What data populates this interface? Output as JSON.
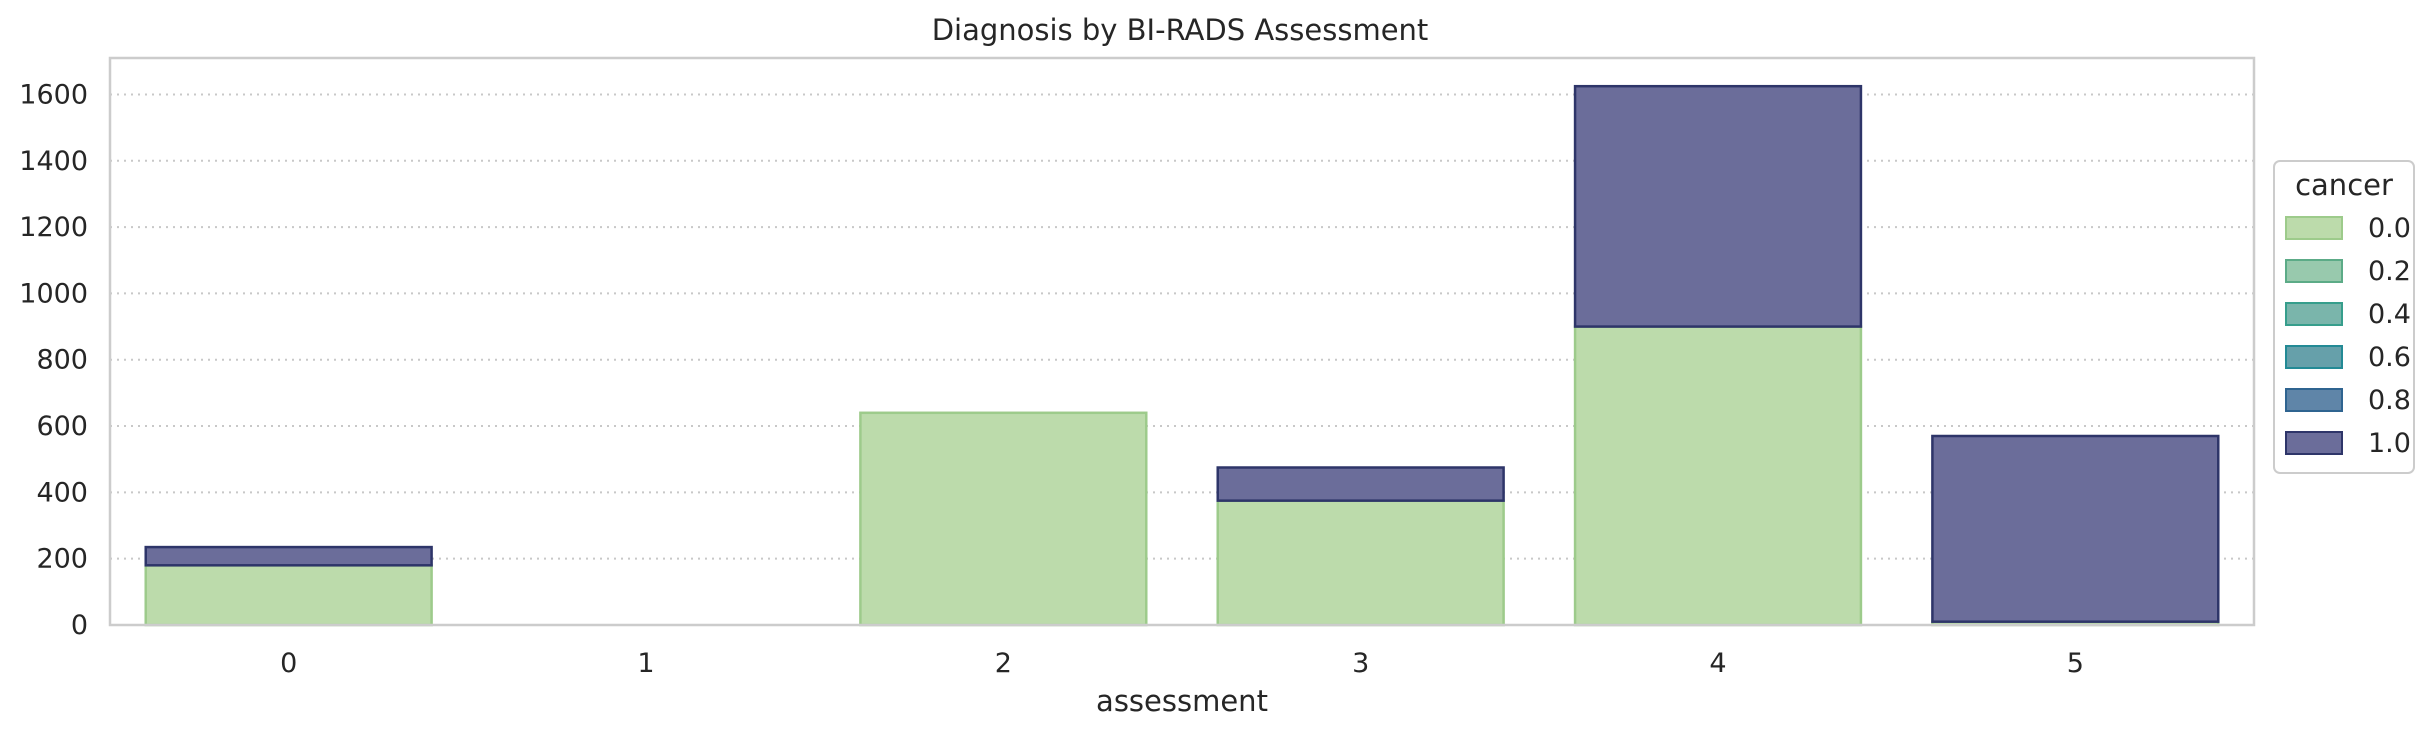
{
  "chart_data": {
    "type": "bar",
    "stacked": true,
    "title": "Diagnosis by BI-RADS Assessment",
    "xlabel": "assessment",
    "ylabel": "",
    "categories": [
      "0",
      "1",
      "2",
      "3",
      "4",
      "5"
    ],
    "yticks": [
      "0",
      "200",
      "400",
      "600",
      "800",
      "1000",
      "1200",
      "1400",
      "1600"
    ],
    "ylim": [
      0,
      1710
    ],
    "grid": "horizontal dotted",
    "series": [
      {
        "name": "0.0",
        "color": "#bcdbab",
        "edge": "#9dcb8b",
        "values": [
          180,
          0,
          640,
          375,
          900,
          10
        ]
      },
      {
        "name": "1.0",
        "color": "#6b6d9a",
        "edge": "#2e3569",
        "values": [
          55,
          0,
          0,
          100,
          725,
          560
        ]
      }
    ],
    "legend": {
      "title": "cancer",
      "placement": "right",
      "entries": [
        {
          "label": "0.0",
          "color": "#bcdbab",
          "edge": "#9dcb8b"
        },
        {
          "label": "0.2",
          "color": "#98c9ad",
          "edge": "#5cab87"
        },
        {
          "label": "0.4",
          "color": "#7ab5ab",
          "edge": "#369e8c"
        },
        {
          "label": "0.6",
          "color": "#66a0aa",
          "edge": "#238a95"
        },
        {
          "label": "0.8",
          "color": "#5f85a8",
          "edge": "#2f6490"
        },
        {
          "label": "1.0",
          "color": "#6b6d9a",
          "edge": "#2e3569"
        }
      ]
    }
  }
}
